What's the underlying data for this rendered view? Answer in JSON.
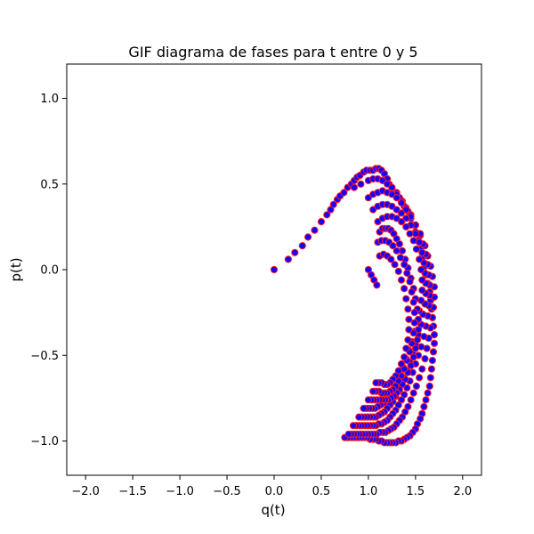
{
  "chart_data": {
    "type": "scatter",
    "title": "GIF diagrama de fases para t entre 0 y 5",
    "xlabel": "q(t)",
    "ylabel": "p(t)",
    "xlim": [
      -2.2,
      2.2
    ],
    "ylim": [
      -1.2,
      1.2
    ],
    "xticks": [
      -2.0,
      -1.5,
      -1.0,
      -0.5,
      0.0,
      0.5,
      1.0,
      1.5,
      2.0
    ],
    "xtick_labels": [
      "−2.0",
      "−1.5",
      "−1.0",
      "−0.5",
      "0.0",
      "0.5",
      "1.0",
      "1.5",
      "2.0"
    ],
    "yticks": [
      -1.0,
      -0.5,
      0.0,
      0.5,
      1.0
    ],
    "ytick_labels": [
      "−1.0",
      "−0.5",
      "0.0",
      "0.5",
      "1.0"
    ],
    "grid": false,
    "marker_face_color": "#1400ff",
    "marker_edge_color": "#ff1a1a",
    "series": [
      {
        "x": [
          0.0,
          0.15,
          0.22,
          0.3,
          0.36,
          0.43,
          0.5,
          0.56,
          0.6,
          0.63,
          0.67,
          0.7,
          0.74,
          0.78,
          0.82,
          0.85,
          0.88,
          0.91,
          0.95,
          0.98,
          1.02,
          1.05,
          1.08,
          1.11,
          1.14,
          1.17,
          1.2,
          1.22,
          1.25,
          1.3,
          1.33,
          1.36,
          1.38,
          1.42,
          1.45,
          1.48,
          1.5,
          1.53,
          1.55,
          1.57,
          1.6,
          1.61,
          1.63,
          1.65,
          1.66,
          1.67,
          1.68,
          1.69,
          1.7,
          1.7,
          1.69,
          1.68,
          1.67,
          1.66,
          1.65,
          1.63,
          1.61,
          1.59,
          1.57,
          1.55,
          1.52,
          1.5,
          1.47,
          1.44,
          1.41,
          1.38,
          1.35,
          1.32,
          1.29,
          1.26,
          1.23,
          1.2,
          1.17,
          1.14,
          1.11,
          1.08,
          1.05,
          1.02,
          0.99,
          0.96,
          0.93,
          0.9,
          0.87,
          0.84,
          0.81,
          0.78,
          0.75
        ],
        "y": [
          0.0,
          0.06,
          0.1,
          0.14,
          0.19,
          0.23,
          0.28,
          0.32,
          0.35,
          0.38,
          0.41,
          0.43,
          0.45,
          0.48,
          0.5,
          0.52,
          0.54,
          0.55,
          0.57,
          0.58,
          0.58,
          0.58,
          0.59,
          0.59,
          0.58,
          0.56,
          0.53,
          0.5,
          0.48,
          0.45,
          0.42,
          0.4,
          0.37,
          0.34,
          0.3,
          0.26,
          0.22,
          0.17,
          0.12,
          0.07,
          0.02,
          -0.03,
          -0.08,
          -0.13,
          -0.18,
          -0.23,
          -0.28,
          -0.33,
          -0.38,
          -0.43,
          -0.48,
          -0.53,
          -0.58,
          -0.63,
          -0.68,
          -0.72,
          -0.76,
          -0.8,
          -0.84,
          -0.87,
          -0.9,
          -0.93,
          -0.95,
          -0.97,
          -0.98,
          -0.99,
          -1.0,
          -1.0,
          -1.01,
          -1.01,
          -1.01,
          -1.01,
          -1.01,
          -1.0,
          -1.0,
          -0.99,
          -0.99,
          -0.99,
          -0.98,
          -0.98,
          -0.98,
          -0.98,
          -0.98,
          -0.98,
          -0.98,
          -0.98,
          -0.98
        ]
      },
      {
        "x": [
          0.85,
          0.92,
          1.0,
          1.05,
          1.1,
          1.15,
          1.2,
          1.25,
          1.3,
          1.35,
          1.4,
          1.45,
          1.5,
          1.55,
          1.6,
          1.63,
          1.66,
          1.68,
          1.7,
          1.7,
          1.69,
          1.68,
          1.66,
          1.64,
          1.62,
          1.6,
          1.57,
          1.54,
          1.51,
          1.48,
          1.45,
          1.42,
          1.39,
          1.36,
          1.33,
          1.3,
          1.27,
          1.24,
          1.21,
          1.18,
          1.15,
          1.12,
          1.09,
          1.06,
          1.03,
          1.0,
          0.97,
          0.94,
          0.91,
          0.88,
          0.85,
          0.82,
          0.79
        ],
        "y": [
          0.48,
          0.5,
          0.52,
          0.53,
          0.53,
          0.52,
          0.5,
          0.48,
          0.44,
          0.4,
          0.36,
          0.32,
          0.26,
          0.2,
          0.14,
          0.08,
          0.02,
          -0.04,
          -0.1,
          -0.16,
          -0.22,
          -0.28,
          -0.34,
          -0.4,
          -0.46,
          -0.52,
          -0.58,
          -0.63,
          -0.68,
          -0.72,
          -0.76,
          -0.8,
          -0.83,
          -0.86,
          -0.88,
          -0.9,
          -0.92,
          -0.93,
          -0.94,
          -0.95,
          -0.95,
          -0.95,
          -0.96,
          -0.96,
          -0.96,
          -0.96,
          -0.96,
          -0.96,
          -0.96,
          -0.96,
          -0.96,
          -0.96,
          -0.96
        ]
      },
      {
        "x": [
          1.0,
          1.05,
          1.1,
          1.15,
          1.2,
          1.25,
          1.3,
          1.35,
          1.4,
          1.45,
          1.5,
          1.55,
          1.58,
          1.61,
          1.63,
          1.64,
          1.65,
          1.65,
          1.64,
          1.63,
          1.61,
          1.59,
          1.56,
          1.53,
          1.5,
          1.47,
          1.44,
          1.41,
          1.38,
          1.35,
          1.32,
          1.29,
          1.26,
          1.23,
          1.2,
          1.17,
          1.14,
          1.11,
          1.08,
          1.05,
          1.02,
          0.99,
          0.96,
          0.93,
          0.9,
          0.87,
          0.84
        ],
        "y": [
          0.42,
          0.44,
          0.45,
          0.46,
          0.45,
          0.44,
          0.42,
          0.39,
          0.35,
          0.31,
          0.26,
          0.21,
          0.15,
          0.09,
          0.03,
          -0.03,
          -0.09,
          -0.15,
          -0.21,
          -0.27,
          -0.33,
          -0.39,
          -0.45,
          -0.5,
          -0.55,
          -0.6,
          -0.65,
          -0.69,
          -0.73,
          -0.76,
          -0.79,
          -0.82,
          -0.84,
          -0.86,
          -0.88,
          -0.89,
          -0.9,
          -0.9,
          -0.91,
          -0.91,
          -0.91,
          -0.91,
          -0.91,
          -0.91,
          -0.91,
          -0.91,
          -0.91
        ]
      },
      {
        "x": [
          1.05,
          1.1,
          1.15,
          1.2,
          1.25,
          1.3,
          1.35,
          1.4,
          1.45,
          1.5,
          1.54,
          1.57,
          1.59,
          1.6,
          1.61,
          1.61,
          1.6,
          1.58,
          1.56,
          1.53,
          1.5,
          1.47,
          1.44,
          1.41,
          1.38,
          1.35,
          1.32,
          1.29,
          1.26,
          1.23,
          1.2,
          1.17,
          1.14,
          1.11,
          1.08,
          1.05,
          1.02,
          0.99,
          0.96,
          0.93,
          0.9
        ],
        "y": [
          0.35,
          0.37,
          0.38,
          0.38,
          0.37,
          0.35,
          0.33,
          0.3,
          0.26,
          0.21,
          0.16,
          0.1,
          0.04,
          -0.02,
          -0.08,
          -0.14,
          -0.2,
          -0.26,
          -0.32,
          -0.38,
          -0.44,
          -0.49,
          -0.54,
          -0.59,
          -0.63,
          -0.67,
          -0.71,
          -0.74,
          -0.77,
          -0.79,
          -0.81,
          -0.83,
          -0.84,
          -0.85,
          -0.86,
          -0.86,
          -0.86,
          -0.86,
          -0.86,
          -0.86,
          -0.86
        ]
      },
      {
        "x": [
          1.1,
          1.15,
          1.2,
          1.25,
          1.3,
          1.35,
          1.4,
          1.44,
          1.48,
          1.51,
          1.54,
          1.56,
          1.57,
          1.57,
          1.56,
          1.54,
          1.52,
          1.49,
          1.46,
          1.43,
          1.4,
          1.37,
          1.34,
          1.31,
          1.28,
          1.25,
          1.22,
          1.19,
          1.16,
          1.13,
          1.1,
          1.07,
          1.04,
          1.01,
          0.98,
          0.95
        ],
        "y": [
          0.28,
          0.3,
          0.31,
          0.31,
          0.3,
          0.28,
          0.25,
          0.21,
          0.17,
          0.12,
          0.06,
          0.0,
          -0.06,
          -0.12,
          -0.18,
          -0.24,
          -0.3,
          -0.36,
          -0.42,
          -0.47,
          -0.52,
          -0.57,
          -0.61,
          -0.65,
          -0.68,
          -0.71,
          -0.74,
          -0.76,
          -0.78,
          -0.79,
          -0.8,
          -0.81,
          -0.81,
          -0.81,
          -0.81,
          -0.81
        ]
      },
      {
        "x": [
          1.0,
          1.03,
          1.06,
          1.09,
          1.12,
          1.15,
          1.18,
          1.21,
          1.24,
          1.27,
          1.3,
          1.33,
          1.36,
          1.39,
          1.42,
          1.45,
          1.48,
          1.5,
          1.52,
          1.53,
          1.53,
          1.52,
          1.5,
          1.48,
          1.45,
          1.42,
          1.39,
          1.36,
          1.33,
          1.3,
          1.27,
          1.24,
          1.21,
          1.18,
          1.15,
          1.12,
          1.09,
          1.06,
          1.03,
          1.0
        ],
        "y": [
          0.0,
          -0.03,
          -0.06,
          -0.09,
          0.22,
          0.24,
          0.24,
          0.24,
          0.23,
          0.21,
          0.18,
          0.15,
          0.11,
          0.06,
          0.01,
          -0.05,
          -0.11,
          -0.17,
          -0.23,
          -0.29,
          -0.35,
          -0.41,
          -0.46,
          -0.51,
          -0.56,
          -0.6,
          -0.64,
          -0.67,
          -0.7,
          -0.72,
          -0.74,
          -0.75,
          -0.76,
          -0.76,
          -0.76,
          -0.76,
          -0.76,
          -0.76,
          -0.76,
          -0.76
        ]
      },
      {
        "x": [
          1.1,
          1.14,
          1.18,
          1.22,
          1.26,
          1.3,
          1.34,
          1.38,
          1.41,
          1.44,
          1.46,
          1.48,
          1.49,
          1.49,
          1.48,
          1.46,
          1.44,
          1.41,
          1.38,
          1.35,
          1.32,
          1.29,
          1.26,
          1.23,
          1.2,
          1.17,
          1.14,
          1.11,
          1.08,
          1.05
        ],
        "y": [
          0.16,
          0.17,
          0.17,
          0.16,
          0.14,
          0.11,
          0.07,
          0.03,
          -0.02,
          -0.07,
          -0.13,
          -0.19,
          -0.25,
          -0.31,
          -0.37,
          -0.43,
          -0.48,
          -0.53,
          -0.58,
          -0.62,
          -0.65,
          -0.68,
          -0.7,
          -0.71,
          -0.72,
          -0.72,
          -0.72,
          -0.71,
          -0.71,
          -0.71
        ]
      },
      {
        "x": [
          1.12,
          1.16,
          1.2,
          1.24,
          1.28,
          1.32,
          1.35,
          1.38,
          1.4,
          1.42,
          1.43,
          1.43,
          1.42,
          1.4,
          1.38,
          1.35,
          1.32,
          1.29,
          1.26,
          1.23,
          1.2,
          1.17,
          1.14,
          1.11,
          1.08
        ],
        "y": [
          0.08,
          0.09,
          0.08,
          0.06,
          0.03,
          -0.01,
          -0.06,
          -0.11,
          -0.17,
          -0.23,
          -0.29,
          -0.35,
          -0.41,
          -0.46,
          -0.51,
          -0.55,
          -0.59,
          -0.62,
          -0.64,
          -0.66,
          -0.67,
          -0.67,
          -0.66,
          -0.66,
          -0.66
        ]
      }
    ]
  }
}
